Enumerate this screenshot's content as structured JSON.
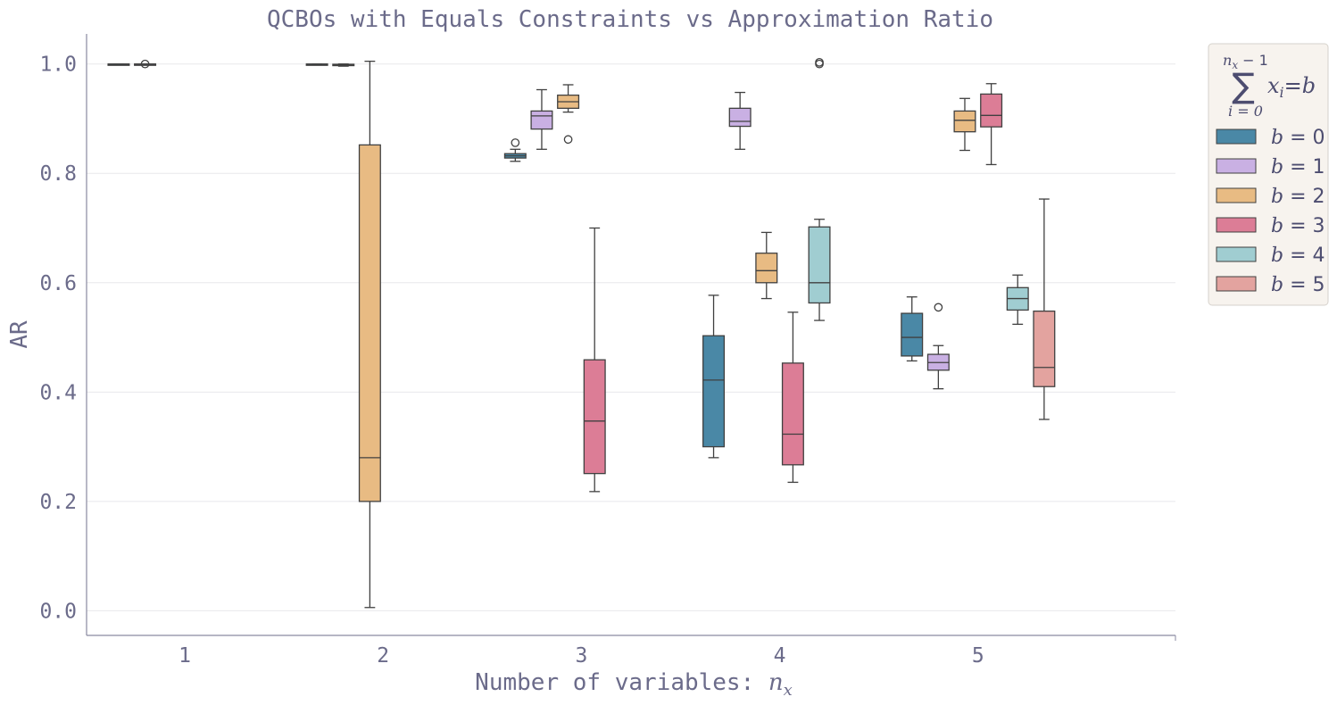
{
  "chart_data": {
    "type": "box",
    "title": "QCBOs with Equals Constraints vs Approximation Ratio",
    "xlabel_text": "Number of variables: ",
    "xlabel_math": "n",
    "xlabel_math_sub": "x",
    "ylabel": "AR",
    "ylim": [
      -0.045,
      1.055
    ],
    "yticks": [
      "0.0",
      "0.2",
      "0.4",
      "0.6",
      "0.8",
      "1.0"
    ],
    "ytick_values": [
      0.0,
      0.2,
      0.4,
      0.6,
      0.8,
      1.0
    ],
    "categories": [
      "1",
      "2",
      "3",
      "4",
      "5"
    ],
    "grid": "horizontal",
    "legend": {
      "placement": "outside-right",
      "title_sum_upper": "n",
      "title_sum_upper_sub": "x",
      "title_sum_upper_rest": " − 1",
      "title_sum_lower": "i = 0",
      "title_sum_symbol": "∑",
      "title_expr_var": "x",
      "title_expr_sub": "i",
      "title_expr_eq": "=",
      "title_expr_rhs": "b"
    },
    "series": [
      {
        "name": "b = 0",
        "label_var": "b",
        "label_rest": " = 0",
        "color": "#4a88a6",
        "boxes": [
          {
            "category": "1",
            "whislo": 0.999,
            "q1": 0.9995,
            "med": 0.9998,
            "q3": 1.0,
            "whishi": 1.0,
            "fliers": []
          },
          {
            "category": "2",
            "whislo": 0.9985,
            "q1": 0.999,
            "med": 0.9995,
            "q3": 1.0,
            "whishi": 1.0,
            "fliers": []
          },
          {
            "category": "3",
            "whislo": 0.822,
            "q1": 0.828,
            "med": 0.832,
            "q3": 0.836,
            "whishi": 0.844,
            "fliers": [
              0.856
            ]
          },
          {
            "category": "4",
            "whislo": 0.28,
            "q1": 0.3,
            "med": 0.422,
            "q3": 0.503,
            "whishi": 0.577,
            "fliers": []
          },
          {
            "category": "5",
            "whislo": 0.457,
            "q1": 0.466,
            "med": 0.5,
            "q3": 0.544,
            "whishi": 0.574,
            "fliers": []
          }
        ]
      },
      {
        "name": "b = 1",
        "label_var": "b",
        "label_rest": " = 1",
        "color": "#c9b0e3",
        "boxes": [
          {
            "category": "1",
            "whislo": 0.999,
            "q1": 0.9995,
            "med": 0.9998,
            "q3": 1.0,
            "whishi": 1.0,
            "fliers": [
              1.0
            ]
          },
          {
            "category": "2",
            "whislo": 0.996,
            "q1": 0.997,
            "med": 0.998,
            "q3": 0.9995,
            "whishi": 1.0,
            "fliers": []
          },
          {
            "category": "3",
            "whislo": 0.844,
            "q1": 0.881,
            "med": 0.905,
            "q3": 0.914,
            "whishi": 0.953,
            "fliers": []
          },
          {
            "category": "4",
            "whislo": 0.844,
            "q1": 0.886,
            "med": 0.895,
            "q3": 0.919,
            "whishi": 0.948,
            "fliers": []
          },
          {
            "category": "5",
            "whislo": 0.406,
            "q1": 0.44,
            "med": 0.454,
            "q3": 0.469,
            "whishi": 0.485,
            "fliers": [
              0.555
            ]
          }
        ]
      },
      {
        "name": "b = 2",
        "label_var": "b",
        "label_rest": " = 2",
        "color": "#e8bb83",
        "boxes": [
          {
            "category": "2",
            "whislo": 0.006,
            "q1": 0.2,
            "med": 0.28,
            "q3": 0.852,
            "whishi": 1.005,
            "fliers": []
          },
          {
            "category": "3",
            "whislo": 0.912,
            "q1": 0.919,
            "med": 0.931,
            "q3": 0.943,
            "whishi": 0.962,
            "fliers": [
              0.862
            ]
          },
          {
            "category": "4",
            "whislo": 0.571,
            "q1": 0.6,
            "med": 0.622,
            "q3": 0.654,
            "whishi": 0.692,
            "fliers": []
          },
          {
            "category": "5",
            "whislo": 0.842,
            "q1": 0.876,
            "med": 0.897,
            "q3": 0.914,
            "whishi": 0.937,
            "fliers": []
          }
        ]
      },
      {
        "name": "b = 3",
        "label_var": "b",
        "label_rest": " = 3",
        "color": "#dc7d96",
        "boxes": [
          {
            "category": "3",
            "whislo": 0.218,
            "q1": 0.251,
            "med": 0.347,
            "q3": 0.459,
            "whishi": 0.7,
            "fliers": []
          },
          {
            "category": "4",
            "whislo": 0.235,
            "q1": 0.267,
            "med": 0.323,
            "q3": 0.453,
            "whishi": 0.546,
            "fliers": []
          },
          {
            "category": "5",
            "whislo": 0.816,
            "q1": 0.885,
            "med": 0.906,
            "q3": 0.945,
            "whishi": 0.964,
            "fliers": []
          }
        ]
      },
      {
        "name": "b = 4",
        "label_var": "b",
        "label_rest": " = 4",
        "color": "#a0cdd1",
        "boxes": [
          {
            "category": "4",
            "whislo": 0.531,
            "q1": 0.563,
            "med": 0.6,
            "q3": 0.702,
            "whishi": 0.716,
            "fliers": [
              1.0,
              1.003
            ]
          },
          {
            "category": "5",
            "whislo": 0.524,
            "q1": 0.55,
            "med": 0.571,
            "q3": 0.591,
            "whishi": 0.614,
            "fliers": []
          }
        ]
      },
      {
        "name": "b = 5",
        "label_var": "b",
        "label_rest": " = 5",
        "color": "#e3a39f",
        "boxes": [
          {
            "category": "5",
            "whislo": 0.35,
            "q1": 0.41,
            "med": 0.445,
            "q3": 0.548,
            "whishi": 0.753,
            "fliers": []
          }
        ]
      }
    ]
  }
}
